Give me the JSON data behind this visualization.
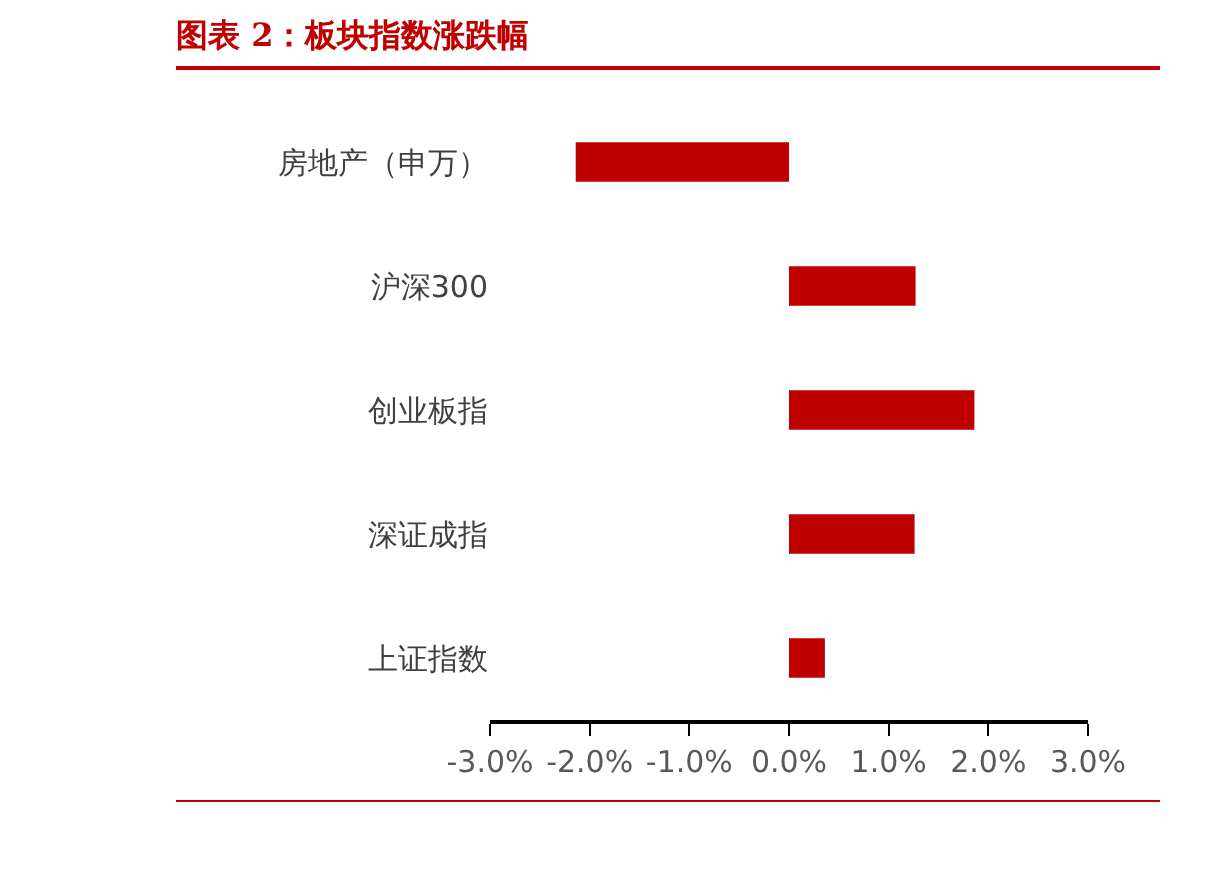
{
  "chart_data": {
    "type": "bar",
    "orientation": "horizontal",
    "title": "图表 2：板块指数涨跌幅",
    "categories": [
      "房地产（申万）",
      "沪深300",
      "创业板指",
      "深证成指",
      "上证指数"
    ],
    "values": [
      -2.14,
      1.27,
      1.86,
      1.26,
      0.36
    ],
    "color": "#c00000",
    "xlim": [
      -3,
      3
    ],
    "xticks": [
      {
        "value": -3,
        "label": "-3.0%"
      },
      {
        "value": -2,
        "label": "-2.0%"
      },
      {
        "value": -1,
        "label": "-1.0%"
      },
      {
        "value": 0,
        "label": "0.0%"
      },
      {
        "value": 1,
        "label": "1.0%"
      },
      {
        "value": 2,
        "label": "2.0%"
      },
      {
        "value": 3,
        "label": "3.0%"
      }
    ],
    "grid": false
  }
}
